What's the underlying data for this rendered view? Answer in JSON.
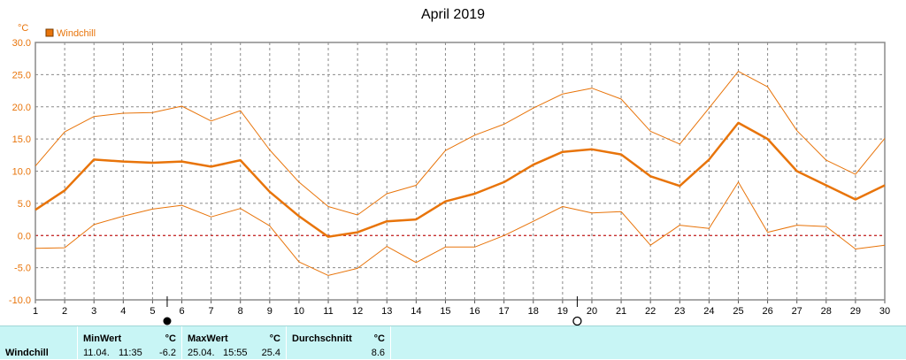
{
  "chart_data": {
    "type": "line",
    "title": "April 2019",
    "unit": "°C",
    "legend": {
      "label": "Windchill",
      "placement": "top-left",
      "color": "#e8740a"
    },
    "x": [
      1,
      2,
      3,
      4,
      5,
      6,
      7,
      8,
      9,
      10,
      11,
      12,
      13,
      14,
      15,
      16,
      17,
      18,
      19,
      20,
      21,
      22,
      23,
      24,
      25,
      26,
      27,
      28,
      29,
      30
    ],
    "xlim": [
      1,
      30
    ],
    "ylim": [
      -10,
      30
    ],
    "yticks": [
      "30.0",
      "25.0",
      "20.0",
      "15.0",
      "10.0",
      "5.0",
      "0.0",
      "-5.0",
      "-10.0"
    ],
    "grid": true,
    "series": [
      {
        "name": "Windchill",
        "role": "mean",
        "values": [
          4.0,
          7.0,
          11.8,
          11.5,
          11.3,
          11.5,
          10.7,
          11.7,
          6.8,
          3.0,
          -0.2,
          0.5,
          2.2,
          2.5,
          5.3,
          6.5,
          8.3,
          11.0,
          13.0,
          13.4,
          12.6,
          9.2,
          7.7,
          11.8,
          17.5,
          15.0,
          10.0,
          7.8,
          5.6,
          7.8
        ]
      },
      {
        "role": "max",
        "values": [
          10.8,
          16.1,
          18.5,
          19.0,
          19.1,
          20.1,
          17.8,
          19.4,
          13.3,
          8.3,
          4.5,
          3.2,
          6.5,
          7.8,
          13.2,
          15.6,
          17.3,
          19.8,
          22.0,
          22.9,
          21.2,
          16.2,
          14.2,
          19.8,
          25.5,
          23.1,
          16.3,
          11.7,
          9.5,
          15.1
        ]
      },
      {
        "role": "min",
        "values": [
          -2.0,
          -1.9,
          1.7,
          3.0,
          4.1,
          4.7,
          2.9,
          4.2,
          1.5,
          -4.1,
          -6.2,
          -5.1,
          -1.7,
          -4.2,
          -1.8,
          -1.8,
          0.0,
          2.2,
          4.5,
          3.5,
          3.7,
          -1.5,
          1.6,
          1.1,
          8.3,
          0.5,
          1.6,
          1.4,
          -2.1,
          -1.5
        ]
      }
    ],
    "reference_line": {
      "y": 0,
      "color": "#cc0000",
      "style": "dashed"
    },
    "markers": [
      {
        "x": 5.5,
        "symbol": "full-moon"
      },
      {
        "x": 19.5,
        "symbol": "new-moon"
      }
    ]
  },
  "stats": {
    "row_label": "Windchill",
    "min": {
      "header": "MinWert",
      "unit": "°C",
      "date": "11.04.",
      "time": "11:35",
      "value": "-6.2"
    },
    "max": {
      "header": "MaxWert",
      "unit": "°C",
      "date": "25.04.",
      "time": "15:55",
      "value": "25.4"
    },
    "avg": {
      "header": "Durchschnitt",
      "unit": "°C",
      "value": "8.6"
    }
  }
}
